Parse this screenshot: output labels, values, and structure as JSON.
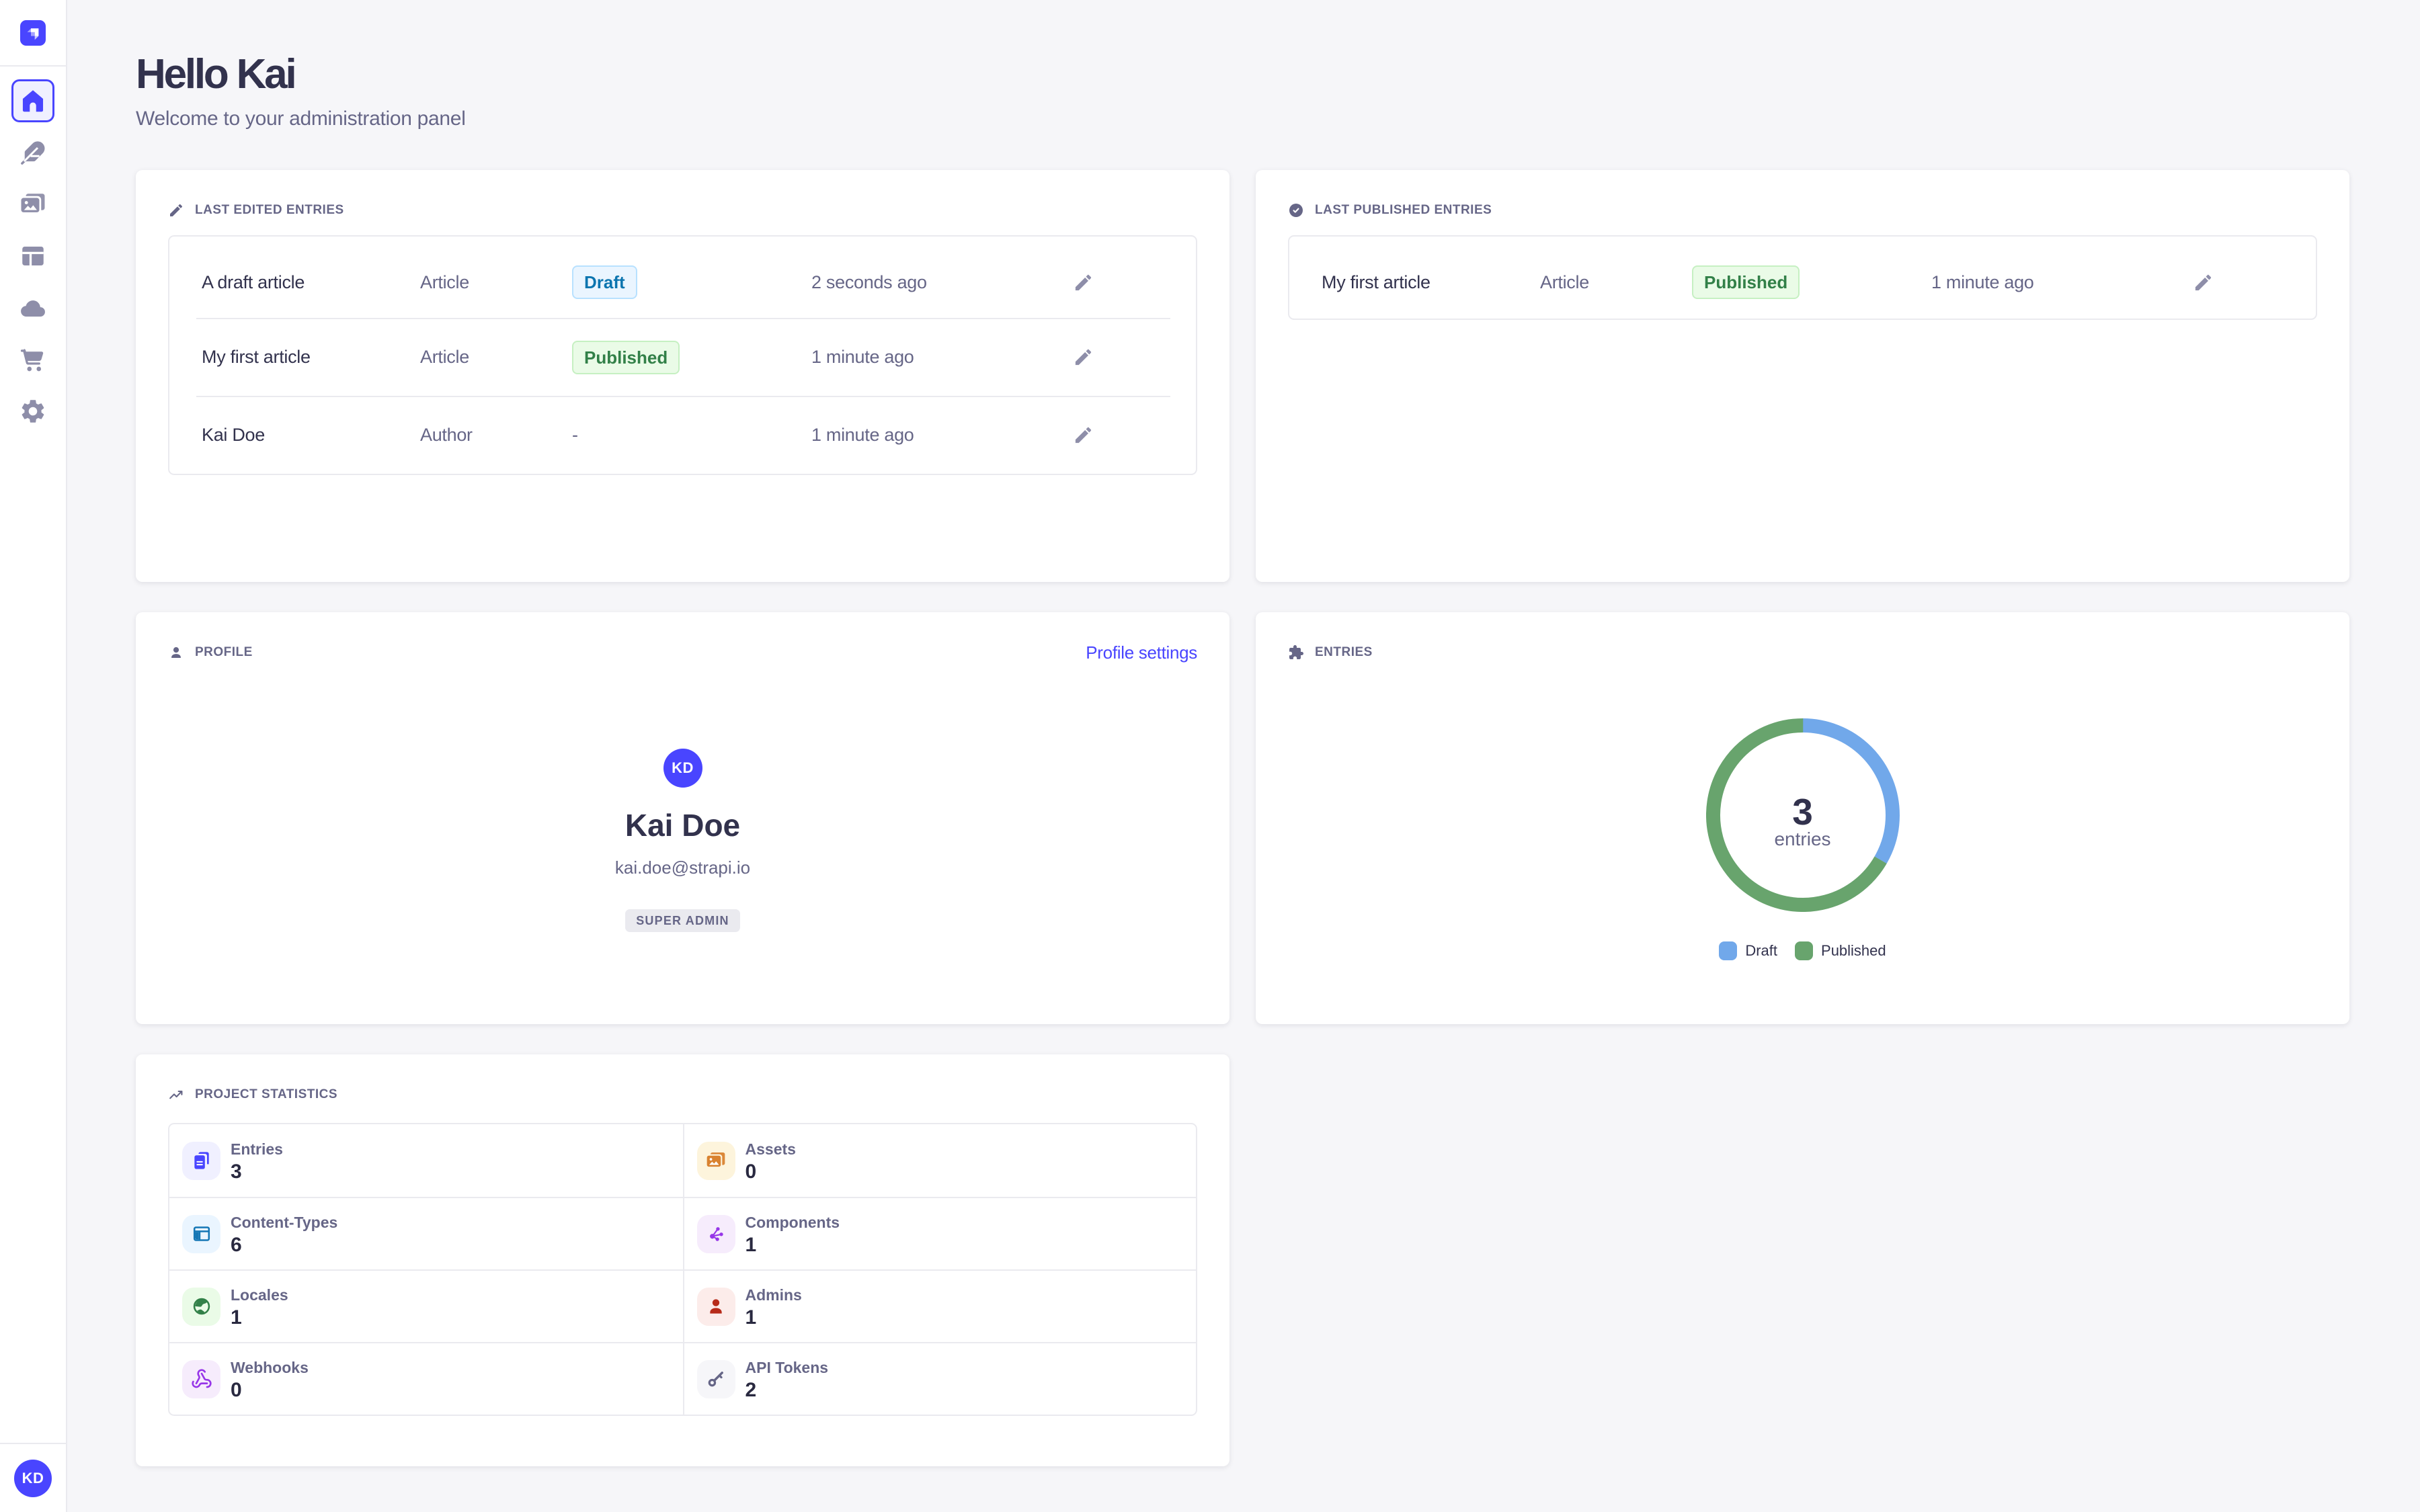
{
  "sidebar": {
    "logo_name": "strapi-logo",
    "items": [
      {
        "id": "home",
        "icon": "home-icon",
        "active": true
      },
      {
        "id": "content-manager",
        "icon": "feather-icon",
        "active": false
      },
      {
        "id": "media-library",
        "icon": "images-icon",
        "active": false
      },
      {
        "id": "content-type-builder",
        "icon": "layout-icon",
        "active": false
      },
      {
        "id": "deploy",
        "icon": "cloud-icon",
        "active": false
      },
      {
        "id": "marketplace",
        "icon": "cart-icon",
        "active": false
      },
      {
        "id": "settings",
        "icon": "gear-icon",
        "active": false
      }
    ],
    "user_initials": "KD"
  },
  "header": {
    "title": "Hello Kai",
    "subtitle": "Welcome to your administration panel"
  },
  "widgets": {
    "last_edited": {
      "title": "LAST EDITED ENTRIES",
      "icon": "pencil-icon",
      "rows": [
        {
          "title": "A draft article",
          "kind": "Article",
          "status": "Draft",
          "time": "2 seconds ago"
        },
        {
          "title": "My first article",
          "kind": "Article",
          "status": "Published",
          "time": "1 minute ago"
        },
        {
          "title": "Kai Doe",
          "kind": "Author",
          "status": "-",
          "time": "1 minute ago"
        }
      ]
    },
    "last_published": {
      "title": "LAST PUBLISHED ENTRIES",
      "icon": "check-circle-icon",
      "rows": [
        {
          "title": "My first article",
          "kind": "Article",
          "status": "Published",
          "time": "1 minute ago"
        }
      ]
    },
    "profile": {
      "title": "PROFILE",
      "icon": "user-icon",
      "settings_link": "Profile settings",
      "initials": "KD",
      "name": "Kai Doe",
      "email": "kai.doe@strapi.io",
      "role": "SUPER ADMIN"
    },
    "entries": {
      "title": "ENTRIES",
      "icon": "puzzle-icon"
    },
    "stats": {
      "title": "PROJECT STATISTICS",
      "icon": "trending-up-icon",
      "items": [
        {
          "label": "Entries",
          "value": "3",
          "icon": "files-icon",
          "bg": "#F0F0FF",
          "fg": "#4945FF"
        },
        {
          "label": "Assets",
          "value": "0",
          "icon": "images-icon",
          "bg": "#FDF4DC",
          "fg": "#D9822F"
        },
        {
          "label": "Content-Types",
          "value": "6",
          "icon": "layout2-icon",
          "bg": "#EAF5FF",
          "fg": "#1577B5"
        },
        {
          "label": "Components",
          "value": "1",
          "icon": "network-icon",
          "bg": "#F6ECFC",
          "fg": "#9736E8"
        },
        {
          "label": "Locales",
          "value": "1",
          "icon": "globe-icon",
          "bg": "#EAFBE7",
          "fg": "#328048"
        },
        {
          "label": "Admins",
          "value": "1",
          "icon": "person-icon",
          "bg": "#FCECEA",
          "fg": "#B72B1A"
        },
        {
          "label": "Webhooks",
          "value": "0",
          "icon": "webhook-icon",
          "bg": "#F6ECFC",
          "fg": "#9736E8"
        },
        {
          "label": "API Tokens",
          "value": "2",
          "icon": "key-icon",
          "bg": "#F6F6F9",
          "fg": "#666687"
        }
      ]
    }
  },
  "chart_data": {
    "type": "pie",
    "title": "ENTRIES",
    "center_value": "3",
    "center_label": "entries",
    "series": [
      {
        "name": "Draft",
        "value": 1,
        "color": "#71A8EA"
      },
      {
        "name": "Published",
        "value": 2,
        "color": "#68A46D"
      }
    ],
    "total": 3,
    "legend_position": "bottom",
    "start_angle_deg": 0,
    "direction": "clockwise"
  },
  "status_colors": {
    "draft": {
      "bg": "#EAF5FF",
      "border": "#B8E1FF",
      "text": "#0C75AF"
    },
    "published": {
      "bg": "#EAFBE7",
      "border": "#C6F0C2",
      "text": "#328048"
    }
  }
}
